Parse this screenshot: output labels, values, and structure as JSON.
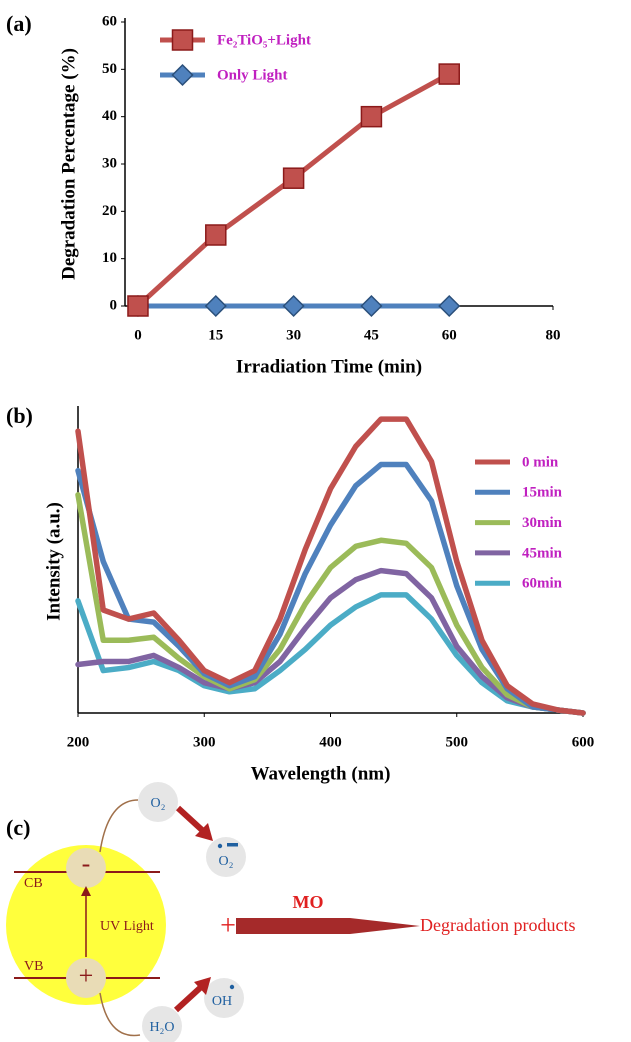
{
  "chart_data": [
    {
      "type": "line",
      "title": "(a)",
      "xlabel": "Irradiation Time (min)",
      "ylabel": "Degradation Percentage (%)",
      "x": [
        0,
        15,
        30,
        45,
        60
      ],
      "series": [
        {
          "name": "Fe₂TiO₅+Light",
          "color": "#c0504d",
          "marker": "square",
          "values": [
            0,
            15,
            27,
            40,
            49
          ]
        },
        {
          "name": "Only Light",
          "color": "#4f81bd",
          "marker": "diamond",
          "values": [
            0,
            0,
            0,
            0,
            0
          ]
        }
      ],
      "xlim": [
        -2.5,
        80
      ],
      "xticks": [
        0,
        15,
        30,
        45,
        60,
        80
      ],
      "ylim": [
        0,
        60
      ],
      "yticks": [
        0,
        10,
        20,
        30,
        40,
        50,
        60
      ],
      "legend": "upper-left",
      "legend_color": "#c020c0"
    },
    {
      "type": "line",
      "title": "(b)",
      "xlabel": "Wavelength (nm)",
      "ylabel": "Intensity (a.u.)",
      "x": [
        200,
        220,
        240,
        260,
        280,
        300,
        320,
        340,
        360,
        380,
        400,
        420,
        440,
        460,
        480,
        500,
        520,
        540,
        560,
        580,
        600
      ],
      "series": [
        {
          "name": "0 min",
          "color": "#c0504d",
          "values": [
            93,
            34,
            31,
            33,
            24,
            14,
            10,
            14,
            31,
            54,
            74,
            88,
            97,
            97,
            83,
            50,
            24,
            9,
            3,
            1,
            0
          ]
        },
        {
          "name": "15min",
          "color": "#4f81bd",
          "values": [
            80,
            50,
            31,
            30,
            22,
            13,
            9,
            12,
            26,
            46,
            62,
            75,
            82,
            82,
            70,
            42,
            21,
            8,
            2,
            1,
            0
          ]
        },
        {
          "name": "30min",
          "color": "#9bbb59",
          "values": [
            72,
            24,
            24,
            25,
            18,
            12,
            8,
            11,
            21,
            36,
            48,
            55,
            57,
            56,
            48,
            29,
            15,
            6,
            2,
            1,
            0
          ]
        },
        {
          "name": "45min",
          "color": "#8064a2",
          "values": [
            16,
            17,
            17,
            19,
            15,
            10,
            8,
            10,
            17,
            28,
            38,
            44,
            47,
            46,
            38,
            22,
            12,
            5,
            2,
            1,
            0
          ]
        },
        {
          "name": "60min",
          "color": "#4bacc6",
          "values": [
            37,
            14,
            15,
            17,
            14,
            9,
            7,
            8,
            14,
            21,
            29,
            35,
            39,
            39,
            31,
            19,
            10,
            4,
            2,
            1,
            0
          ]
        }
      ],
      "xlim": [
        200,
        600
      ],
      "xticks": [
        200,
        300,
        400,
        500,
        600
      ],
      "ylim": [
        0,
        100
      ],
      "legend": "upper-right",
      "legend_color": "#c020c0"
    }
  ],
  "diagram": {
    "title": "(c)",
    "cb": "CB",
    "vb": "VB",
    "uv": "UV Light",
    "electron": "-",
    "hole": "+",
    "o2": "O₂",
    "superoxide": "O₂",
    "plus": "+",
    "hydroxyl": "OH",
    "water": "H₂O",
    "mo": "MO",
    "products": "Degradation products"
  }
}
